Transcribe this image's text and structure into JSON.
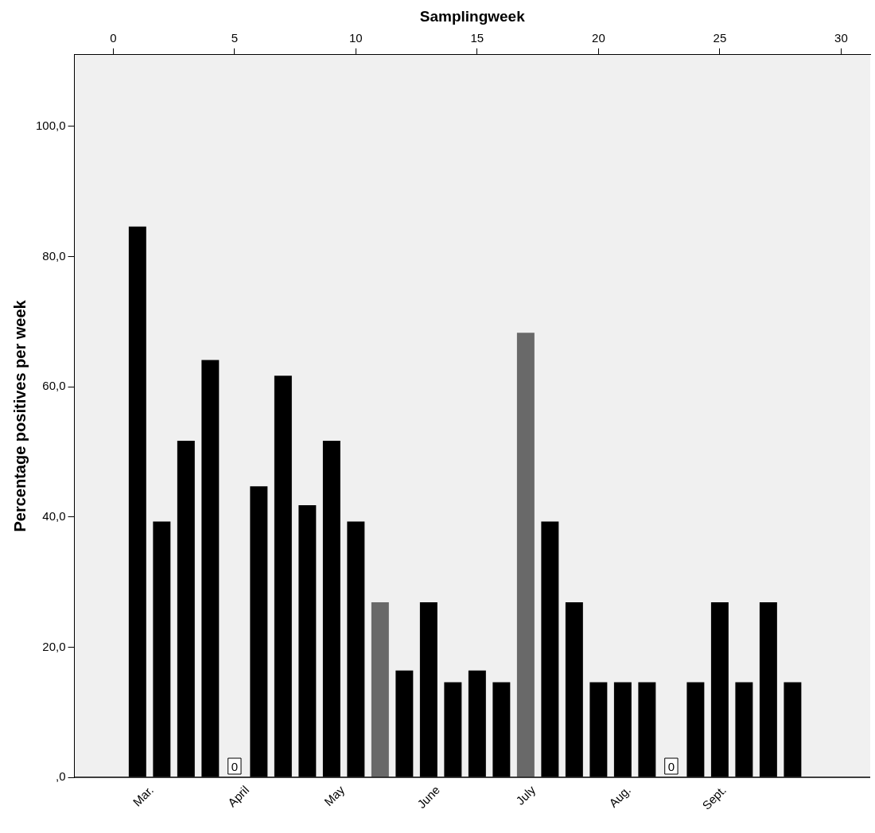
{
  "chart_data": {
    "type": "bar",
    "xlabel": "Samplingweek",
    "ylabel": "Percentage positives per week",
    "x": [
      1,
      2,
      3,
      4,
      5,
      6,
      7,
      8,
      9,
      10,
      11,
      12,
      13,
      14,
      15,
      16,
      17,
      18,
      19,
      20,
      21,
      22,
      23,
      24,
      25,
      26,
      27,
      28
    ],
    "values": [
      84.6,
      39.3,
      51.7,
      64.1,
      0,
      44.7,
      61.7,
      41.8,
      51.7,
      39.3,
      26.9,
      16.4,
      26.9,
      14.6,
      16.4,
      14.6,
      68.3,
      39.3,
      26.9,
      14.6,
      14.6,
      14.6,
      0,
      14.6,
      26.9,
      14.6,
      26.9,
      14.6
    ],
    "colors": [
      "#000000",
      "#000000",
      "#000000",
      "#000000",
      "#000000",
      "#000000",
      "#000000",
      "#000000",
      "#000000",
      "#000000",
      "#696969",
      "#000000",
      "#000000",
      "#000000",
      "#000000",
      "#000000",
      "#696969",
      "#000000",
      "#000000",
      "#000000",
      "#000000",
      "#000000",
      "#000000",
      "#000000",
      "#000000",
      "#000000",
      "#000000",
      "#000000"
    ],
    "value_labels": [
      null,
      null,
      null,
      null,
      "0",
      null,
      null,
      null,
      null,
      null,
      null,
      null,
      null,
      null,
      null,
      null,
      null,
      null,
      null,
      null,
      null,
      null,
      "0",
      null,
      null,
      null,
      null,
      null
    ],
    "xlim": [
      -1.6,
      31.2
    ],
    "xticks": [
      0,
      5,
      10,
      15,
      20,
      25,
      30
    ],
    "ylim": [
      0,
      111
    ],
    "yticks": [
      {
        "value": 0,
        "label": ",0"
      },
      {
        "value": 20,
        "label": "20,0"
      },
      {
        "value": 40,
        "label": "40,0"
      },
      {
        "value": 60,
        "label": "60,0"
      },
      {
        "value": 80,
        "label": "80,0"
      },
      {
        "value": 100,
        "label": "100,0"
      }
    ],
    "annotations": [
      "Mar.",
      "April",
      "May",
      "June",
      "July",
      "Aug.",
      "Sept."
    ],
    "grid": false,
    "legend": false
  }
}
